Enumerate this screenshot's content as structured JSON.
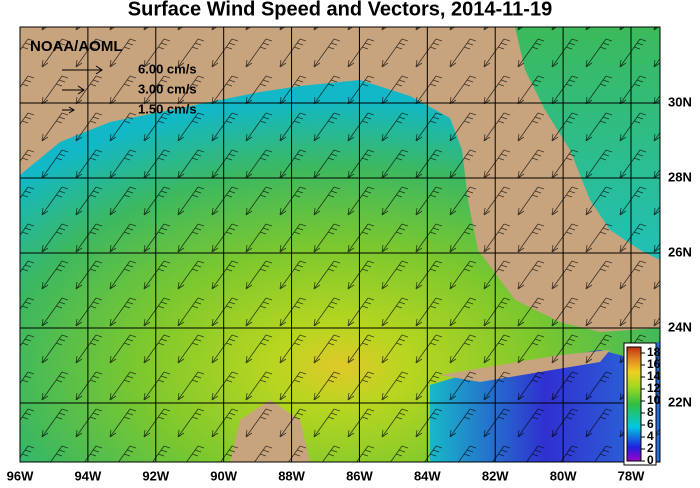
{
  "title": "Surface Wind Speed and Vectors, 2014-11-19",
  "source": "NOAA/AOML",
  "vector_legend": [
    "6.00 cm/s",
    "3.00 cm/s",
    "1.50 cm/s"
  ],
  "longitude_labels": [
    "96W",
    "94W",
    "92W",
    "90W",
    "88W",
    "86W",
    "84W",
    "82W",
    "80W",
    "78W"
  ],
  "latitude_labels": [
    "30N",
    "28N",
    "26N",
    "24N",
    "22N"
  ],
  "colorbar": {
    "lim": [
      0,
      19
    ],
    "ticks": [
      0,
      2,
      4,
      6,
      8,
      10,
      12,
      14,
      16,
      18
    ]
  }
}
